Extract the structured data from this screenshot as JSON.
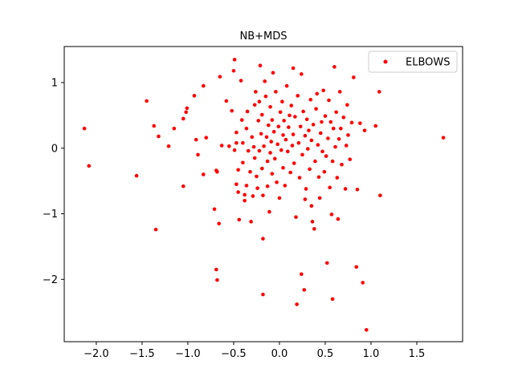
{
  "chart_data": {
    "type": "scatter",
    "title": "NB+MDS",
    "xlabel": "",
    "ylabel": "",
    "xlim": [
      -2.35,
      2.0
    ],
    "ylim": [
      -2.95,
      1.55
    ],
    "xticks": [
      -2.0,
      -1.5,
      -1.0,
      -0.5,
      0.0,
      0.5,
      1.0,
      1.5
    ],
    "xtick_labels": [
      "−2.0",
      "−1.5",
      "−1.0",
      "−0.5",
      "0.0",
      "0.5",
      "1.0",
      "1.5"
    ],
    "yticks": [
      -2,
      -1,
      0,
      1
    ],
    "ytick_labels": [
      "−2",
      "−1",
      "0",
      "1"
    ],
    "grid": false,
    "legend_position": "top-right",
    "series": [
      {
        "name": "ELBOWS",
        "color": "#ff0000",
        "points": [
          [
            -2.13,
            0.3
          ],
          [
            -2.08,
            -0.27
          ],
          [
            -1.56,
            -0.42
          ],
          [
            -1.45,
            0.72
          ],
          [
            -1.37,
            0.34
          ],
          [
            -1.35,
            -1.24
          ],
          [
            -1.32,
            0.18
          ],
          [
            -1.21,
            0.03
          ],
          [
            -1.15,
            0.3
          ],
          [
            -1.05,
            0.45
          ],
          [
            -1.02,
            0.55
          ],
          [
            -1.01,
            0.61
          ],
          [
            -1.05,
            -0.58
          ],
          [
            -0.93,
            0.8
          ],
          [
            -0.91,
            0.13
          ],
          [
            -0.89,
            -0.1
          ],
          [
            -0.83,
            0.95
          ],
          [
            -0.8,
            0.16
          ],
          [
            -0.83,
            -0.4
          ],
          [
            -0.71,
            -0.93
          ],
          [
            -0.69,
            -0.34
          ],
          [
            -0.68,
            -0.36
          ],
          [
            -0.69,
            -1.85
          ],
          [
            -0.68,
            -2.01
          ],
          [
            -0.66,
            -1.15
          ],
          [
            -0.65,
            1.09
          ],
          [
            -0.63,
            0.04
          ],
          [
            -0.58,
            0.72
          ],
          [
            -0.55,
            0.03
          ],
          [
            -0.52,
            0.57
          ],
          [
            -0.5,
            1.18
          ],
          [
            -0.49,
            1.35
          ],
          [
            -0.49,
            -0.03
          ],
          [
            -0.47,
            0.08
          ],
          [
            -0.47,
            0.24
          ],
          [
            -0.47,
            -0.55
          ],
          [
            -0.45,
            -0.33
          ],
          [
            -0.45,
            -0.67
          ],
          [
            -0.44,
            -1.09
          ],
          [
            -0.42,
            1.03
          ],
          [
            -0.41,
            0.43
          ],
          [
            -0.4,
            0.08
          ],
          [
            -0.4,
            -0.22
          ],
          [
            -0.38,
            -0.71
          ],
          [
            -0.38,
            -0.8
          ],
          [
            -0.36,
            -0.57
          ],
          [
            -0.36,
            0.3
          ],
          [
            -0.35,
            0.56
          ],
          [
            -0.34,
            -0.04
          ],
          [
            -0.32,
            -0.36
          ],
          [
            -0.31,
            -1.12
          ],
          [
            -0.3,
            0.17
          ],
          [
            -0.29,
            -0.73
          ],
          [
            -0.28,
            0.02
          ],
          [
            -0.27,
            0.66
          ],
          [
            -0.27,
            -0.15
          ],
          [
            -0.26,
            0.86
          ],
          [
            -0.25,
            -0.43
          ],
          [
            -0.24,
            -0.61
          ],
          [
            -0.23,
            0.42
          ],
          [
            -0.22,
            -0.04
          ],
          [
            -0.22,
            0.71
          ],
          [
            -0.21,
            1.26
          ],
          [
            -0.2,
            0.22
          ],
          [
            -0.19,
            0.51
          ],
          [
            -0.19,
            -0.31
          ],
          [
            -0.18,
            -0.72
          ],
          [
            -0.18,
            -1.38
          ],
          [
            -0.18,
            -2.23
          ],
          [
            -0.17,
            0.03
          ],
          [
            -0.16,
            1.02
          ],
          [
            -0.15,
            0.79
          ],
          [
            -0.14,
            0.17
          ],
          [
            -0.13,
            -0.2
          ],
          [
            -0.13,
            -0.58
          ],
          [
            -0.12,
            0.35
          ],
          [
            -0.11,
            -0.97
          ],
          [
            -0.1,
            0.63
          ],
          [
            -0.1,
            -0.07
          ],
          [
            -0.09,
            0.1
          ],
          [
            -0.08,
            0.43
          ],
          [
            -0.08,
            -0.39
          ],
          [
            -0.07,
            1.15
          ],
          [
            -0.06,
            0.25
          ],
          [
            -0.05,
            -0.16
          ],
          [
            -0.04,
            0.86
          ],
          [
            -0.03,
            -0.52
          ],
          [
            -0.02,
            0.06
          ],
          [
            -0.01,
            0.33
          ],
          [
            0.0,
            -0.76
          ],
          [
            0.01,
            0.55
          ],
          [
            0.02,
            -0.03
          ],
          [
            0.03,
            0.71
          ],
          [
            0.04,
            0.2
          ],
          [
            0.04,
            -0.3
          ],
          [
            0.05,
            0.42
          ],
          [
            0.06,
            -0.57
          ],
          [
            0.07,
            0.13
          ],
          [
            0.08,
            0.95
          ],
          [
            0.09,
            -0.05
          ],
          [
            0.1,
            0.32
          ],
          [
            0.11,
            0.5
          ],
          [
            0.12,
            -0.37
          ],
          [
            0.13,
            0.65
          ],
          [
            0.14,
            0.04
          ],
          [
            0.15,
            0.21
          ],
          [
            0.15,
            1.22
          ],
          [
            0.16,
            -0.23
          ],
          [
            0.17,
            0.48
          ],
          [
            0.18,
            -1.05
          ],
          [
            0.19,
            -2.38
          ],
          [
            0.2,
            0.8
          ],
          [
            0.21,
            0.08
          ],
          [
            0.22,
            -0.45
          ],
          [
            0.23,
            0.33
          ],
          [
            0.24,
            1.13
          ],
          [
            0.24,
            -1.92
          ],
          [
            0.25,
            -0.1
          ],
          [
            0.26,
            0.56
          ],
          [
            0.27,
            -2.16
          ],
          [
            0.28,
            -0.78
          ],
          [
            0.28,
            0.19
          ],
          [
            0.29,
            -0.62
          ],
          [
            0.3,
            0.44
          ],
          [
            0.31,
            -0.01
          ],
          [
            0.32,
            0.27
          ],
          [
            0.33,
            -0.32
          ],
          [
            0.34,
            0.74
          ],
          [
            0.35,
            0.12
          ],
          [
            0.35,
            -0.88
          ],
          [
            0.36,
            -1.12
          ],
          [
            0.37,
            0.36
          ],
          [
            0.38,
            -1.23
          ],
          [
            0.39,
            -0.2
          ],
          [
            0.4,
            0.6
          ],
          [
            0.41,
            0.83
          ],
          [
            0.42,
            0.05
          ],
          [
            0.43,
            -0.44
          ],
          [
            0.44,
            -0.76
          ],
          [
            0.45,
            0.23
          ],
          [
            0.46,
            0.4
          ],
          [
            0.47,
            -0.05
          ],
          [
            0.48,
            0.88
          ],
          [
            0.49,
            -0.36
          ],
          [
            0.5,
            0.49
          ],
          [
            0.51,
            -0.12
          ],
          [
            0.52,
            -1.75
          ],
          [
            0.53,
            0.15
          ],
          [
            0.54,
            0.73
          ],
          [
            0.55,
            -0.6
          ],
          [
            0.56,
            0.4
          ],
          [
            0.57,
            -1.01
          ],
          [
            0.58,
            -2.3
          ],
          [
            0.58,
            -0.2
          ],
          [
            0.59,
            0.3
          ],
          [
            0.6,
            1.24
          ],
          [
            0.61,
            0.02
          ],
          [
            0.62,
            0.55
          ],
          [
            0.63,
            -0.45
          ],
          [
            0.64,
            -1.08
          ],
          [
            0.65,
            0.14
          ],
          [
            0.66,
            0.86
          ],
          [
            0.67,
            0.3
          ],
          [
            0.68,
            -0.25
          ],
          [
            0.7,
            0.47
          ],
          [
            0.72,
            -0.62
          ],
          [
            0.73,
            0.04
          ],
          [
            0.74,
            0.66
          ],
          [
            0.75,
            0.2
          ],
          [
            0.77,
            -0.17
          ],
          [
            0.79,
            0.39
          ],
          [
            0.81,
            1.08
          ],
          [
            0.84,
            -1.81
          ],
          [
            0.85,
            -0.63
          ],
          [
            0.88,
            0.38
          ],
          [
            0.91,
            -2.05
          ],
          [
            0.93,
            0.27
          ],
          [
            0.95,
            -2.77
          ],
          [
            1.05,
            0.34
          ],
          [
            1.09,
            0.86
          ],
          [
            1.1,
            -0.72
          ],
          [
            1.79,
            0.16
          ]
        ]
      }
    ]
  }
}
